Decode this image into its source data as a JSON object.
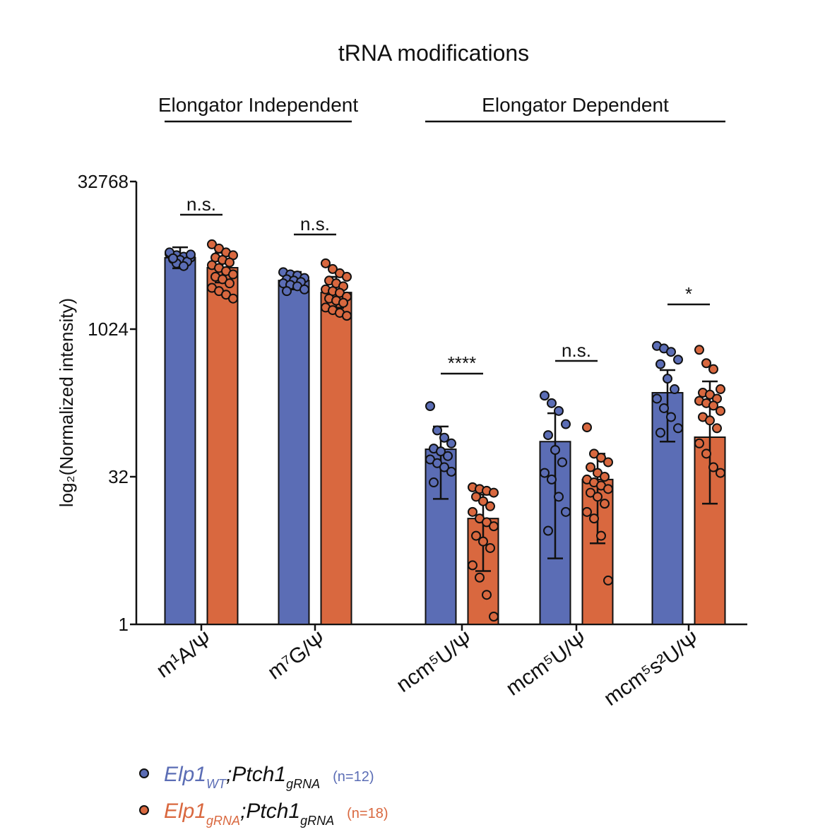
{
  "chart_data": {
    "type": "bar",
    "title": "tRNA modifications",
    "groups": [
      {
        "label": "Elongator Independent",
        "categories": [
          0,
          1
        ]
      },
      {
        "label": "Elongator Dependent",
        "categories": [
          2,
          3,
          4
        ]
      }
    ],
    "y_label": "log₂(Normalized intensity)",
    "log_base": 2,
    "ylim": [
      1,
      32768
    ],
    "yticks": [
      1,
      32,
      1024,
      32768
    ],
    "categories": [
      "m¹A/Ψ",
      "m⁷G/Ψ",
      "ncm⁵U/Ψ",
      "mcm⁵U/Ψ",
      "mcm⁵s²U/Ψ"
    ],
    "significance": [
      "n.s.",
      "n.s.",
      "****",
      "n.s.",
      "*"
    ],
    "series": [
      {
        "name_parts": [
          "Elp1",
          "WT",
          ";Ptch1",
          "gRNA"
        ],
        "n_label": "(n=12)",
        "color": "#5b6db5",
        "values": [
          5480,
          3210,
          61,
          73,
          230
        ],
        "errors": [
          [
            4270,
            7000
          ],
          [
            2600,
            3920
          ],
          [
            19,
            104
          ],
          [
            4.7,
            142
          ],
          [
            73,
            391
          ]
        ],
        "points": [
          [
            6000,
            5800,
            5600,
            5500,
            5300,
            5200,
            5000,
            6200,
            4800,
            4500,
            5900,
            5400
          ],
          [
            3900,
            3700,
            3600,
            3400,
            3300,
            3200,
            3100,
            3000,
            2900,
            2800,
            2600,
            2500
          ],
          [
            168,
            95,
            80,
            70,
            62,
            58,
            52,
            48,
            44,
            40,
            36,
            28
          ],
          [
            215,
            180,
            150,
            110,
            85,
            60,
            45,
            35,
            30,
            20,
            14,
            9
          ],
          [
            690,
            650,
            600,
            500,
            450,
            320,
            250,
            200,
            160,
            130,
            100,
            90
          ]
        ]
      },
      {
        "name_parts": [
          "Elp1",
          "gRNA",
          ";Ptch1",
          "gRNA"
        ],
        "n_label": "(n=18)",
        "color": "#d9683f",
        "values": [
          4330,
          2420,
          12,
          30,
          81
        ],
        "errors": [
          [
            3060,
            6150
          ],
          [
            1690,
            3490
          ],
          [
            3.5,
            21
          ],
          [
            6.7,
            55
          ],
          [
            17,
            300
          ]
        ],
        "points": [
          [
            7500,
            6800,
            6200,
            5800,
            5500,
            5200,
            4900,
            4600,
            4300,
            4000,
            3700,
            3500,
            3300,
            3000,
            2700,
            2500,
            2300,
            2100
          ],
          [
            4800,
            4200,
            3800,
            3500,
            3200,
            3000,
            2800,
            2600,
            2500,
            2400,
            2200,
            2100,
            2000,
            1900,
            1700,
            1600,
            1500,
            1400
          ],
          [
            25,
            24,
            23,
            22,
            20,
            18,
            16,
            14,
            12,
            11,
            10,
            8,
            7,
            6,
            4,
            3,
            2,
            1.2
          ],
          [
            102,
            55,
            50,
            45,
            40,
            35,
            32,
            30,
            28,
            26,
            24,
            22,
            20,
            17,
            14,
            12,
            8,
            2.8
          ],
          [
            630,
            460,
            400,
            250,
            230,
            220,
            200,
            190,
            180,
            170,
            150,
            130,
            120,
            100,
            70,
            55,
            40,
            35
          ]
        ]
      }
    ]
  }
}
